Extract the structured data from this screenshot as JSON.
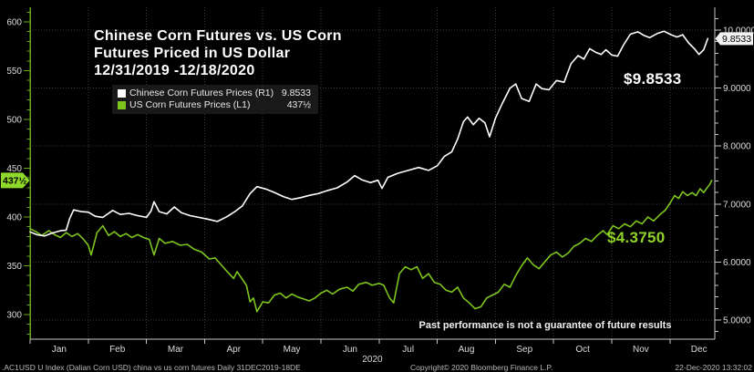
{
  "title": {
    "line1": "Chinese Corn Futures vs. US Corn",
    "line2": "Futures Priced in US Dollar",
    "line3": "12/31/2019 -12/18/2020"
  },
  "legend": {
    "items": [
      {
        "label": "Chinese Corn Futures Prices (R1)",
        "value": "9.8533",
        "color": "#ffffff"
      },
      {
        "label": "US Corn Futures Prices (L1)",
        "value": "437½",
        "color": "#7dc51e"
      }
    ]
  },
  "annotations": {
    "white": "$9.8533",
    "green": "$4.3750"
  },
  "disclaimer": "Past performance is not a guarantee of future results",
  "footer": {
    "left": ".AC1USD U Index (Dalian Corn USD) china vs us corn futures  Daily 31DEC2019-18DE",
    "center": "Copyright© 2020 Bloomberg Finance L.P.",
    "right": "22-Dec-2020 13:32:02"
  },
  "colors": {
    "background": "#000000",
    "white_line": "#ffffff",
    "green_line": "#7dc51e",
    "left_axis_line": "#6aa81c",
    "right_axis_line": "#c8c8c8",
    "x_axis_line": "#c8c8c8",
    "grid": "#3a3a3a",
    "tick_label": "#dcdcdc",
    "tag_left_bg": "#8ed929",
    "tag_right_bg": "#f2f2f2",
    "tag_text": "#000000"
  },
  "chart_data": {
    "type": "line",
    "title": "Chinese Corn Futures vs. US Corn Futures Priced in US Dollar 12/31/2019 -12/18/2020",
    "x_axis": {
      "months": [
        "Jan",
        "Feb",
        "Mar",
        "Apr",
        "May",
        "Jun",
        "Jul",
        "Aug",
        "Sep",
        "Oct",
        "Nov",
        "Dec"
      ],
      "year": "2020",
      "range_months": [
        0,
        12
      ]
    },
    "left_axis": {
      "series": "US Corn Futures Prices",
      "tick_values": [
        600,
        550,
        500,
        450,
        400,
        350,
        300
      ],
      "minor_step": 10,
      "range": [
        275,
        615
      ]
    },
    "right_axis": {
      "series": "Chinese Corn Futures Prices",
      "tick_values": [
        10,
        9,
        8,
        7,
        6,
        5
      ],
      "tick_labels": [
        "10.0000",
        "9.0000",
        "8.0000",
        "7.0000",
        "6.0000",
        "5.0000"
      ],
      "minor_step": 0.2,
      "range": [
        4.67,
        10.39
      ]
    },
    "grid": {
      "horizontal_at_right_ticks": true,
      "vertical_at_month_boundaries": true
    },
    "price_tags": {
      "left": {
        "label": "437½",
        "value": 437.5
      },
      "right": {
        "label": "9.8533",
        "value": 9.8533
      }
    },
    "series": [
      {
        "name": "US Corn Futures Prices",
        "unit": "cents/bu",
        "axis": "left",
        "color": "#7dc51e",
        "last_value": 437.5,
        "points": [
          [
            0,
            388
          ],
          [
            0.1,
            385
          ],
          [
            0.2,
            381
          ],
          [
            0.32,
            386
          ],
          [
            0.42,
            382
          ],
          [
            0.52,
            379
          ],
          [
            0.62,
            384
          ],
          [
            0.72,
            380
          ],
          [
            0.82,
            383
          ],
          [
            0.92,
            377
          ],
          [
            1,
            371
          ],
          [
            1.05,
            361
          ],
          [
            1.15,
            384
          ],
          [
            1.25,
            391
          ],
          [
            1.35,
            381
          ],
          [
            1.45,
            385
          ],
          [
            1.55,
            380
          ],
          [
            1.65,
            383
          ],
          [
            1.75,
            379
          ],
          [
            1.85,
            382
          ],
          [
            1.95,
            379
          ],
          [
            2.05,
            377
          ],
          [
            2.13,
            361
          ],
          [
            2.22,
            378
          ],
          [
            2.32,
            373
          ],
          [
            2.45,
            375
          ],
          [
            2.58,
            371
          ],
          [
            2.7,
            372
          ],
          [
            2.82,
            367
          ],
          [
            2.95,
            364
          ],
          [
            3.08,
            357
          ],
          [
            3.18,
            358
          ],
          [
            3.3,
            350
          ],
          [
            3.42,
            342
          ],
          [
            3.5,
            337
          ],
          [
            3.56,
            344
          ],
          [
            3.65,
            336
          ],
          [
            3.72,
            330
          ],
          [
            3.78,
            313
          ],
          [
            3.84,
            317
          ],
          [
            3.9,
            303
          ],
          [
            4,
            313
          ],
          [
            4.1,
            312
          ],
          [
            4.2,
            320
          ],
          [
            4.3,
            322
          ],
          [
            4.4,
            317
          ],
          [
            4.5,
            321
          ],
          [
            4.6,
            318
          ],
          [
            4.7,
            316
          ],
          [
            4.8,
            314
          ],
          [
            4.9,
            317
          ],
          [
            5,
            322
          ],
          [
            5.1,
            325
          ],
          [
            5.2,
            321
          ],
          [
            5.32,
            326
          ],
          [
            5.45,
            328
          ],
          [
            5.55,
            324
          ],
          [
            5.65,
            331
          ],
          [
            5.78,
            333
          ],
          [
            5.88,
            330
          ],
          [
            6,
            332
          ],
          [
            6.08,
            330
          ],
          [
            6.18,
            317
          ],
          [
            6.25,
            312
          ],
          [
            6.35,
            342
          ],
          [
            6.45,
            349
          ],
          [
            6.55,
            346
          ],
          [
            6.65,
            349
          ],
          [
            6.75,
            337
          ],
          [
            6.85,
            342
          ],
          [
            6.95,
            333
          ],
          [
            7.05,
            331
          ],
          [
            7.15,
            325
          ],
          [
            7.25,
            323
          ],
          [
            7.35,
            328
          ],
          [
            7.45,
            317
          ],
          [
            7.55,
            312
          ],
          [
            7.65,
            306
          ],
          [
            7.75,
            308
          ],
          [
            7.85,
            317
          ],
          [
            7.95,
            320
          ],
          [
            8.05,
            323
          ],
          [
            8.15,
            331
          ],
          [
            8.25,
            328
          ],
          [
            8.35,
            340
          ],
          [
            8.45,
            350
          ],
          [
            8.55,
            358
          ],
          [
            8.65,
            351
          ],
          [
            8.75,
            347
          ],
          [
            8.85,
            354
          ],
          [
            8.95,
            361
          ],
          [
            9.05,
            364
          ],
          [
            9.15,
            359
          ],
          [
            9.25,
            363
          ],
          [
            9.35,
            370
          ],
          [
            9.45,
            373
          ],
          [
            9.55,
            378
          ],
          [
            9.65,
            375
          ],
          [
            9.75,
            381
          ],
          [
            9.85,
            386
          ],
          [
            9.92,
            382
          ],
          [
            10.02,
            391
          ],
          [
            10.12,
            388
          ],
          [
            10.22,
            393
          ],
          [
            10.32,
            390
          ],
          [
            10.42,
            396
          ],
          [
            10.52,
            393
          ],
          [
            10.62,
            400
          ],
          [
            10.72,
            396
          ],
          [
            10.82,
            402
          ],
          [
            10.92,
            407
          ],
          [
            11,
            414
          ],
          [
            11.08,
            422
          ],
          [
            11.15,
            419
          ],
          [
            11.22,
            426
          ],
          [
            11.3,
            422
          ],
          [
            11.38,
            425
          ],
          [
            11.45,
            422
          ],
          [
            11.52,
            429
          ],
          [
            11.58,
            425
          ],
          [
            11.64,
            430
          ],
          [
            11.68,
            433
          ],
          [
            11.72,
            437.5
          ]
        ]
      },
      {
        "name": "Chinese Corn Futures Prices",
        "unit": "USD",
        "axis": "right",
        "color": "#ffffff",
        "last_value": 9.8533,
        "points": [
          [
            0,
            6.52
          ],
          [
            0.12,
            6.47
          ],
          [
            0.25,
            6.45
          ],
          [
            0.38,
            6.5
          ],
          [
            0.52,
            6.54
          ],
          [
            0.62,
            6.55
          ],
          [
            0.68,
            6.75
          ],
          [
            0.75,
            6.9
          ],
          [
            0.88,
            6.87
          ],
          [
            1,
            6.86
          ],
          [
            1.12,
            6.79
          ],
          [
            1.25,
            6.77
          ],
          [
            1.42,
            6.89
          ],
          [
            1.55,
            6.82
          ],
          [
            1.7,
            6.84
          ],
          [
            1.85,
            6.8
          ],
          [
            2,
            6.77
          ],
          [
            2.08,
            6.88
          ],
          [
            2.13,
            7.04
          ],
          [
            2.22,
            6.87
          ],
          [
            2.35,
            6.83
          ],
          [
            2.48,
            6.95
          ],
          [
            2.6,
            6.85
          ],
          [
            2.75,
            6.8
          ],
          [
            2.9,
            6.77
          ],
          [
            3.05,
            6.74
          ],
          [
            3.22,
            6.7
          ],
          [
            3.38,
            6.78
          ],
          [
            3.52,
            6.87
          ],
          [
            3.65,
            6.97
          ],
          [
            3.78,
            7.18
          ],
          [
            3.9,
            7.3
          ],
          [
            4.05,
            7.26
          ],
          [
            4.2,
            7.2
          ],
          [
            4.35,
            7.13
          ],
          [
            4.5,
            7.08
          ],
          [
            4.65,
            7.11
          ],
          [
            4.8,
            7.15
          ],
          [
            4.95,
            7.18
          ],
          [
            5.1,
            7.23
          ],
          [
            5.28,
            7.28
          ],
          [
            5.45,
            7.38
          ],
          [
            5.58,
            7.49
          ],
          [
            5.7,
            7.42
          ],
          [
            5.85,
            7.37
          ],
          [
            5.98,
            7.41
          ],
          [
            6.05,
            7.27
          ],
          [
            6.15,
            7.46
          ],
          [
            6.32,
            7.53
          ],
          [
            6.5,
            7.58
          ],
          [
            6.68,
            7.63
          ],
          [
            6.85,
            7.58
          ],
          [
            7,
            7.66
          ],
          [
            7.12,
            7.82
          ],
          [
            7.25,
            7.9
          ],
          [
            7.35,
            8.12
          ],
          [
            7.45,
            8.42
          ],
          [
            7.52,
            8.5
          ],
          [
            7.62,
            8.37
          ],
          [
            7.72,
            8.48
          ],
          [
            7.82,
            8.4
          ],
          [
            7.9,
            8.16
          ],
          [
            8,
            8.48
          ],
          [
            8.12,
            8.74
          ],
          [
            8.25,
            9
          ],
          [
            8.35,
            9.07
          ],
          [
            8.45,
            8.82
          ],
          [
            8.58,
            8.77
          ],
          [
            8.7,
            9.07
          ],
          [
            8.8,
            8.99
          ],
          [
            8.92,
            8.97
          ],
          [
            9.05,
            9.13
          ],
          [
            9.18,
            9.1
          ],
          [
            9.3,
            9.42
          ],
          [
            9.42,
            9.56
          ],
          [
            9.52,
            9.5
          ],
          [
            9.62,
            9.68
          ],
          [
            9.72,
            9.62
          ],
          [
            9.82,
            9.58
          ],
          [
            9.9,
            9.66
          ],
          [
            10,
            9.57
          ],
          [
            10.1,
            9.55
          ],
          [
            10.2,
            9.74
          ],
          [
            10.32,
            9.93
          ],
          [
            10.45,
            9.97
          ],
          [
            10.55,
            9.91
          ],
          [
            10.65,
            9.87
          ],
          [
            10.78,
            9.94
          ],
          [
            10.9,
            9.98
          ],
          [
            11.02,
            9.92
          ],
          [
            11.12,
            9.88
          ],
          [
            11.22,
            9.92
          ],
          [
            11.32,
            9.78
          ],
          [
            11.42,
            9.68
          ],
          [
            11.5,
            9.58
          ],
          [
            11.58,
            9.66
          ],
          [
            11.65,
            9.8533
          ]
        ]
      }
    ]
  }
}
